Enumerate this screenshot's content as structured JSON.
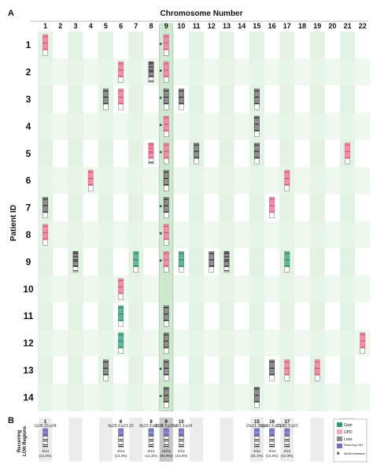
{
  "panel_a_label": "A",
  "panel_b_label": "B",
  "title": "Chromosome Number",
  "ylabel": "Patient ID",
  "rec_label_1": "Recurring",
  "rec_label_2": "LOH Regions",
  "legend": [
    {
      "label": "Gain",
      "color": "#2e9e7d"
    },
    {
      "label": "UPD",
      "color": "#f7a6b6"
    },
    {
      "label": "Loss",
      "color": "#8b8b8b"
    },
    {
      "label": "Recurring LOH",
      "color": "#6f6fc8"
    },
    {
      "label": "Allelic Imbalance",
      "symbol": "*"
    }
  ],
  "colors": {
    "gain": "#2e9e7d",
    "upd": "#f06a8e",
    "loss": "#222222",
    "recurring": "#6f6fc8",
    "col_shade": "#e3f2e3",
    "row_shade": "#e8f5e8",
    "chr9_highlight": "#cfe8cf"
  },
  "chart_data": {
    "type": "heatmap",
    "x_categories": [
      "1",
      "2",
      "3",
      "4",
      "5",
      "6",
      "7",
      "8",
      "9",
      "10",
      "11",
      "12",
      "13",
      "14",
      "15",
      "16",
      "17",
      "18",
      "19",
      "20",
      "21",
      "22"
    ],
    "y_categories": [
      "1",
      "2",
      "3",
      "4",
      "5",
      "6",
      "7",
      "8",
      "9",
      "10",
      "11",
      "12",
      "13",
      "14"
    ],
    "events": [
      {
        "patient": "1",
        "chr": "1",
        "type": "upd"
      },
      {
        "patient": "1",
        "chr": "9",
        "type": "upd",
        "allelic_imbalance": true
      },
      {
        "patient": "2",
        "chr": "6",
        "type": "upd"
      },
      {
        "patient": "2",
        "chr": "8",
        "type": "loss"
      },
      {
        "patient": "2",
        "chr": "9",
        "type": "upd",
        "allelic_imbalance": true
      },
      {
        "patient": "3",
        "chr": "5",
        "type": "loss"
      },
      {
        "patient": "3",
        "chr": "6",
        "type": "upd"
      },
      {
        "patient": "3",
        "chr": "9",
        "type": "loss",
        "allelic_imbalance": true
      },
      {
        "patient": "3",
        "chr": "10",
        "type": "loss"
      },
      {
        "patient": "3",
        "chr": "15",
        "type": "loss"
      },
      {
        "patient": "4",
        "chr": "9",
        "type": "upd",
        "allelic_imbalance": true
      },
      {
        "patient": "4",
        "chr": "15",
        "type": "loss"
      },
      {
        "patient": "5",
        "chr": "8",
        "type": "upd"
      },
      {
        "patient": "5",
        "chr": "9",
        "type": "upd",
        "allelic_imbalance": true
      },
      {
        "patient": "5",
        "chr": "11",
        "type": "loss"
      },
      {
        "patient": "5",
        "chr": "15",
        "type": "loss"
      },
      {
        "patient": "5",
        "chr": "21",
        "type": "upd"
      },
      {
        "patient": "6",
        "chr": "4",
        "type": "upd"
      },
      {
        "patient": "6",
        "chr": "9",
        "type": "loss"
      },
      {
        "patient": "6",
        "chr": "17",
        "type": "upd"
      },
      {
        "patient": "7",
        "chr": "1",
        "type": "loss"
      },
      {
        "patient": "7",
        "chr": "9",
        "type": "loss",
        "allelic_imbalance": true
      },
      {
        "patient": "7",
        "chr": "16",
        "type": "upd"
      },
      {
        "patient": "8",
        "chr": "1",
        "type": "upd"
      },
      {
        "patient": "8",
        "chr": "9",
        "type": "upd",
        "allelic_imbalance": true
      },
      {
        "patient": "9",
        "chr": "3",
        "type": "loss"
      },
      {
        "patient": "9",
        "chr": "7",
        "type": "gain"
      },
      {
        "patient": "9",
        "chr": "9",
        "type": "upd",
        "allelic_imbalance": true
      },
      {
        "patient": "9",
        "chr": "10",
        "type": "gain"
      },
      {
        "patient": "9",
        "chr": "12",
        "type": "loss"
      },
      {
        "patient": "9",
        "chr": "13",
        "type": "loss"
      },
      {
        "patient": "9",
        "chr": "17",
        "type": "gain"
      },
      {
        "patient": "10",
        "chr": "6",
        "type": "upd"
      },
      {
        "patient": "11",
        "chr": "6",
        "type": "gain"
      },
      {
        "patient": "11",
        "chr": "9",
        "type": "loss"
      },
      {
        "patient": "12",
        "chr": "6",
        "type": "gain"
      },
      {
        "patient": "12",
        "chr": "9",
        "type": "loss"
      },
      {
        "patient": "12",
        "chr": "22",
        "type": "upd"
      },
      {
        "patient": "13",
        "chr": "5",
        "type": "loss"
      },
      {
        "patient": "13",
        "chr": "9",
        "type": "loss",
        "allelic_imbalance": true
      },
      {
        "patient": "13",
        "chr": "16",
        "type": "loss"
      },
      {
        "patient": "13",
        "chr": "17",
        "type": "upd"
      },
      {
        "patient": "13",
        "chr": "19",
        "type": "upd"
      },
      {
        "patient": "14",
        "chr": "9",
        "type": "loss",
        "allelic_imbalance": true
      },
      {
        "patient": "14",
        "chr": "15",
        "type": "loss"
      }
    ],
    "recurring": [
      {
        "chr": "1",
        "region": "1p36.33-p34",
        "count": "2/14",
        "percent": "(14.3%)"
      },
      {
        "chr": "6",
        "region": "6p25.3-p21.33",
        "count": "2/14",
        "percent": "(14.3%)"
      },
      {
        "chr": "8",
        "region": "8p23.3-p21.3",
        "count": "2/14",
        "percent": "(14.3%)"
      },
      {
        "chr": "9",
        "region": "9p24.3-p13.1",
        "count": "13/14",
        "percent": "(92.9%)"
      },
      {
        "chr": "10",
        "region": "10p15.3-p14",
        "count": "2/14",
        "percent": "(14.3%)"
      },
      {
        "chr": "15",
        "region": "15q11.2-q14",
        "count": "3/14",
        "percent": "(21.4%)"
      },
      {
        "chr": "16",
        "region": "16p13.3-p12.3",
        "count": "2/14",
        "percent": "(14.3%)"
      },
      {
        "chr": "17",
        "region": "17p13.3-p12",
        "count": "2/14",
        "percent": "(14.3%)"
      }
    ]
  }
}
